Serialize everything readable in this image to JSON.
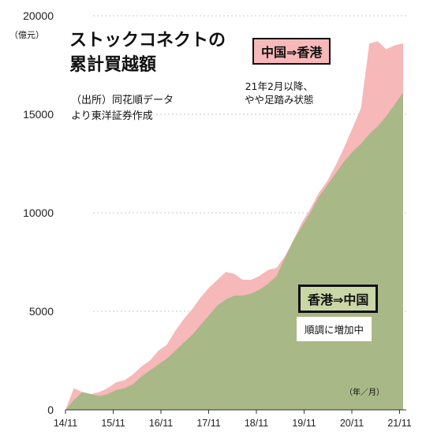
{
  "chart_data": {
    "type": "area",
    "title": "ストックコネクトの\n累計買越額",
    "y_unit": "（億元）",
    "x_unit": "（年／月）",
    "source_note": "（出所）同花順データ\nより東洋証券作成",
    "ylim": [
      0,
      20000
    ],
    "y_ticks": [
      "0",
      "5000",
      "10000",
      "15000",
      "20000"
    ],
    "x_ticks": [
      "14/11",
      "15/11",
      "16/11",
      "17/11",
      "18/11",
      "19/11",
      "20/11",
      "21/11"
    ],
    "grid": "horizontal dotted",
    "x_start": "2014-11",
    "series": [
      {
        "name": "中国⇒香港",
        "note": "21年2月以降、\nやや足踏み状態",
        "color": "#f6b8b8",
        "values": [
          0,
          1100,
          900,
          800,
          900,
          1100,
          1400,
          1500,
          1800,
          2200,
          2500,
          3000,
          3300,
          4000,
          4600,
          5100,
          5700,
          6200,
          6600,
          7000,
          6900,
          6600,
          6600,
          6800,
          7100,
          7200,
          7800,
          8600,
          9500,
          10200,
          11000,
          11600,
          12400,
          13300,
          14300,
          15300,
          18600,
          18700,
          18300,
          18500,
          18600
        ]
      },
      {
        "name": "香港⇒中国",
        "note": "順調に増加中",
        "color": "#a9b887",
        "values": [
          0,
          500,
          900,
          800,
          700,
          800,
          1000,
          1100,
          1300,
          1700,
          2000,
          2300,
          2600,
          3000,
          3400,
          3800,
          4300,
          4800,
          5300,
          5600,
          5800,
          5800,
          5900,
          6100,
          6400,
          6800,
          7700,
          8600,
          9300,
          10000,
          10800,
          11400,
          12000,
          12600,
          13100,
          13500,
          14000,
          14400,
          14900,
          15500,
          16100
        ]
      }
    ]
  }
}
